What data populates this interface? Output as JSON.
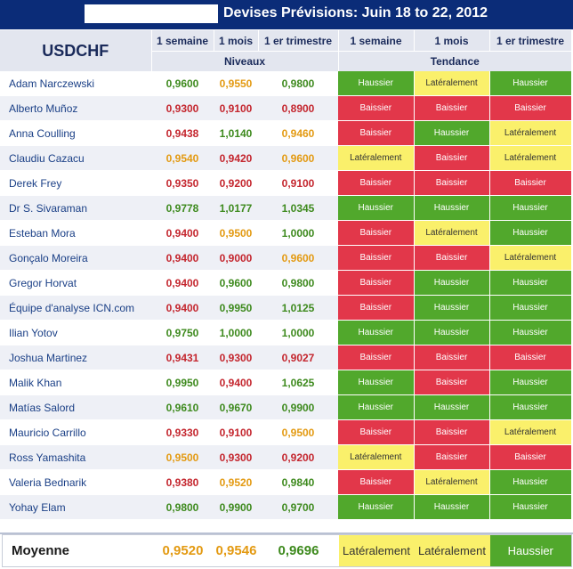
{
  "header": {
    "title": "Devises Prévisions: Juin 18 to 22, 2012"
  },
  "table": {
    "pair": "USDCHF",
    "period_labels": [
      "1 semaine",
      "1 mois",
      "1 er trimestre",
      "1 semaine",
      "1 mois",
      "1 er trimestre"
    ],
    "group_levels": "Niveaux",
    "group_trend": "Tendance",
    "rows": [
      {
        "name": "Adam Narczewski",
        "levels": [
          {
            "v": "0,9600",
            "c": "green"
          },
          {
            "v": "0,9550",
            "c": "orange"
          },
          {
            "v": "0,9800",
            "c": "green"
          }
        ],
        "trends": [
          {
            "t": "Haussier",
            "k": "up"
          },
          {
            "t": "Latéralement",
            "k": "side"
          },
          {
            "t": "Haussier",
            "k": "up"
          }
        ]
      },
      {
        "name": "Alberto Muñoz",
        "levels": [
          {
            "v": "0,9300",
            "c": "red"
          },
          {
            "v": "0,9100",
            "c": "red"
          },
          {
            "v": "0,8900",
            "c": "red"
          }
        ],
        "trends": [
          {
            "t": "Baissier",
            "k": "down"
          },
          {
            "t": "Baissier",
            "k": "down"
          },
          {
            "t": "Baissier",
            "k": "down"
          }
        ]
      },
      {
        "name": "Anna Coulling",
        "levels": [
          {
            "v": "0,9438",
            "c": "red"
          },
          {
            "v": "1,0140",
            "c": "green"
          },
          {
            "v": "0,9460",
            "c": "orange"
          }
        ],
        "trends": [
          {
            "t": "Baissier",
            "k": "down"
          },
          {
            "t": "Haussier",
            "k": "up"
          },
          {
            "t": "Latéralement",
            "k": "side"
          }
        ]
      },
      {
        "name": "Claudiu Cazacu",
        "levels": [
          {
            "v": "0,9540",
            "c": "orange"
          },
          {
            "v": "0,9420",
            "c": "red"
          },
          {
            "v": "0,9600",
            "c": "orange"
          }
        ],
        "trends": [
          {
            "t": "Latéralement",
            "k": "side"
          },
          {
            "t": "Baissier",
            "k": "down"
          },
          {
            "t": "Latéralement",
            "k": "side"
          }
        ]
      },
      {
        "name": "Derek Frey",
        "levels": [
          {
            "v": "0,9350",
            "c": "red"
          },
          {
            "v": "0,9200",
            "c": "red"
          },
          {
            "v": "0,9100",
            "c": "red"
          }
        ],
        "trends": [
          {
            "t": "Baissier",
            "k": "down"
          },
          {
            "t": "Baissier",
            "k": "down"
          },
          {
            "t": "Baissier",
            "k": "down"
          }
        ]
      },
      {
        "name": "Dr S. Sivaraman",
        "levels": [
          {
            "v": "0,9778",
            "c": "green"
          },
          {
            "v": "1,0177",
            "c": "green"
          },
          {
            "v": "1,0345",
            "c": "green"
          }
        ],
        "trends": [
          {
            "t": "Haussier",
            "k": "up"
          },
          {
            "t": "Haussier",
            "k": "up"
          },
          {
            "t": "Haussier",
            "k": "up"
          }
        ]
      },
      {
        "name": "Esteban Mora",
        "levels": [
          {
            "v": "0,9400",
            "c": "red"
          },
          {
            "v": "0,9500",
            "c": "orange"
          },
          {
            "v": "1,0000",
            "c": "green"
          }
        ],
        "trends": [
          {
            "t": "Baissier",
            "k": "down"
          },
          {
            "t": "Latéralement",
            "k": "side"
          },
          {
            "t": "Haussier",
            "k": "up"
          }
        ]
      },
      {
        "name": "Gonçalo Moreira",
        "levels": [
          {
            "v": "0,9400",
            "c": "red"
          },
          {
            "v": "0,9000",
            "c": "red"
          },
          {
            "v": "0,9600",
            "c": "orange"
          }
        ],
        "trends": [
          {
            "t": "Baissier",
            "k": "down"
          },
          {
            "t": "Baissier",
            "k": "down"
          },
          {
            "t": "Latéralement",
            "k": "side"
          }
        ]
      },
      {
        "name": "Gregor Horvat",
        "levels": [
          {
            "v": "0,9400",
            "c": "red"
          },
          {
            "v": "0,9600",
            "c": "green"
          },
          {
            "v": "0,9800",
            "c": "green"
          }
        ],
        "trends": [
          {
            "t": "Baissier",
            "k": "down"
          },
          {
            "t": "Haussier",
            "k": "up"
          },
          {
            "t": "Haussier",
            "k": "up"
          }
        ]
      },
      {
        "name": "Équipe d'analyse ICN.com",
        "levels": [
          {
            "v": "0,9400",
            "c": "red"
          },
          {
            "v": "0,9950",
            "c": "green"
          },
          {
            "v": "1,0125",
            "c": "green"
          }
        ],
        "trends": [
          {
            "t": "Baissier",
            "k": "down"
          },
          {
            "t": "Haussier",
            "k": "up"
          },
          {
            "t": "Haussier",
            "k": "up"
          }
        ]
      },
      {
        "name": "Ilian Yotov",
        "levels": [
          {
            "v": "0,9750",
            "c": "green"
          },
          {
            "v": "1,0000",
            "c": "green"
          },
          {
            "v": "1,0000",
            "c": "green"
          }
        ],
        "trends": [
          {
            "t": "Haussier",
            "k": "up"
          },
          {
            "t": "Haussier",
            "k": "up"
          },
          {
            "t": "Haussier",
            "k": "up"
          }
        ]
      },
      {
        "name": "Joshua Martinez",
        "levels": [
          {
            "v": "0,9431",
            "c": "red"
          },
          {
            "v": "0,9300",
            "c": "red"
          },
          {
            "v": "0,9027",
            "c": "red"
          }
        ],
        "trends": [
          {
            "t": "Baissier",
            "k": "down"
          },
          {
            "t": "Baissier",
            "k": "down"
          },
          {
            "t": "Baissier",
            "k": "down"
          }
        ]
      },
      {
        "name": "Malik Khan",
        "levels": [
          {
            "v": "0,9950",
            "c": "green"
          },
          {
            "v": "0,9400",
            "c": "red"
          },
          {
            "v": "1,0625",
            "c": "green"
          }
        ],
        "trends": [
          {
            "t": "Haussier",
            "k": "up"
          },
          {
            "t": "Baissier",
            "k": "down"
          },
          {
            "t": "Haussier",
            "k": "up"
          }
        ]
      },
      {
        "name": "Matías Salord",
        "levels": [
          {
            "v": "0,9610",
            "c": "green"
          },
          {
            "v": "0,9670",
            "c": "green"
          },
          {
            "v": "0,9900",
            "c": "green"
          }
        ],
        "trends": [
          {
            "t": "Haussier",
            "k": "up"
          },
          {
            "t": "Haussier",
            "k": "up"
          },
          {
            "t": "Haussier",
            "k": "up"
          }
        ]
      },
      {
        "name": "Mauricio Carrillo",
        "levels": [
          {
            "v": "0,9330",
            "c": "red"
          },
          {
            "v": "0,9100",
            "c": "red"
          },
          {
            "v": "0,9500",
            "c": "orange"
          }
        ],
        "trends": [
          {
            "t": "Baissier",
            "k": "down"
          },
          {
            "t": "Baissier",
            "k": "down"
          },
          {
            "t": "Latéralement",
            "k": "side"
          }
        ]
      },
      {
        "name": "Ross Yamashita",
        "levels": [
          {
            "v": "0,9500",
            "c": "orange"
          },
          {
            "v": "0,9300",
            "c": "red"
          },
          {
            "v": "0,9200",
            "c": "red"
          }
        ],
        "trends": [
          {
            "t": "Latéralement",
            "k": "side"
          },
          {
            "t": "Baissier",
            "k": "down"
          },
          {
            "t": "Baissier",
            "k": "down"
          }
        ]
      },
      {
        "name": "Valeria Bednarik",
        "levels": [
          {
            "v": "0,9380",
            "c": "red"
          },
          {
            "v": "0,9520",
            "c": "orange"
          },
          {
            "v": "0,9840",
            "c": "green"
          }
        ],
        "trends": [
          {
            "t": "Baissier",
            "k": "down"
          },
          {
            "t": "Latéralement",
            "k": "side"
          },
          {
            "t": "Haussier",
            "k": "up"
          }
        ]
      },
      {
        "name": "Yohay Elam",
        "levels": [
          {
            "v": "0,9800",
            "c": "green"
          },
          {
            "v": "0,9900",
            "c": "green"
          },
          {
            "v": "0,9700",
            "c": "green"
          }
        ],
        "trends": [
          {
            "t": "Haussier",
            "k": "up"
          },
          {
            "t": "Haussier",
            "k": "up"
          },
          {
            "t": "Haussier",
            "k": "up"
          }
        ]
      }
    ]
  },
  "average": {
    "label": "Moyenne",
    "levels": [
      {
        "v": "0,9520",
        "c": "orange"
      },
      {
        "v": "0,9546",
        "c": "orange"
      },
      {
        "v": "0,9696",
        "c": "green"
      }
    ],
    "trends": [
      {
        "t": "Latéralement",
        "k": "side"
      },
      {
        "t": "Latéralement",
        "k": "side"
      },
      {
        "t": "Haussier",
        "k": "up"
      }
    ]
  },
  "colors": {
    "banner": "#0b2c78",
    "level_green": "#3e8a1e",
    "level_red": "#c4262e",
    "level_orange": "#e39a12",
    "trend_up": "#51a82c",
    "trend_down": "#e2374a",
    "trend_side": "#faf06b"
  }
}
